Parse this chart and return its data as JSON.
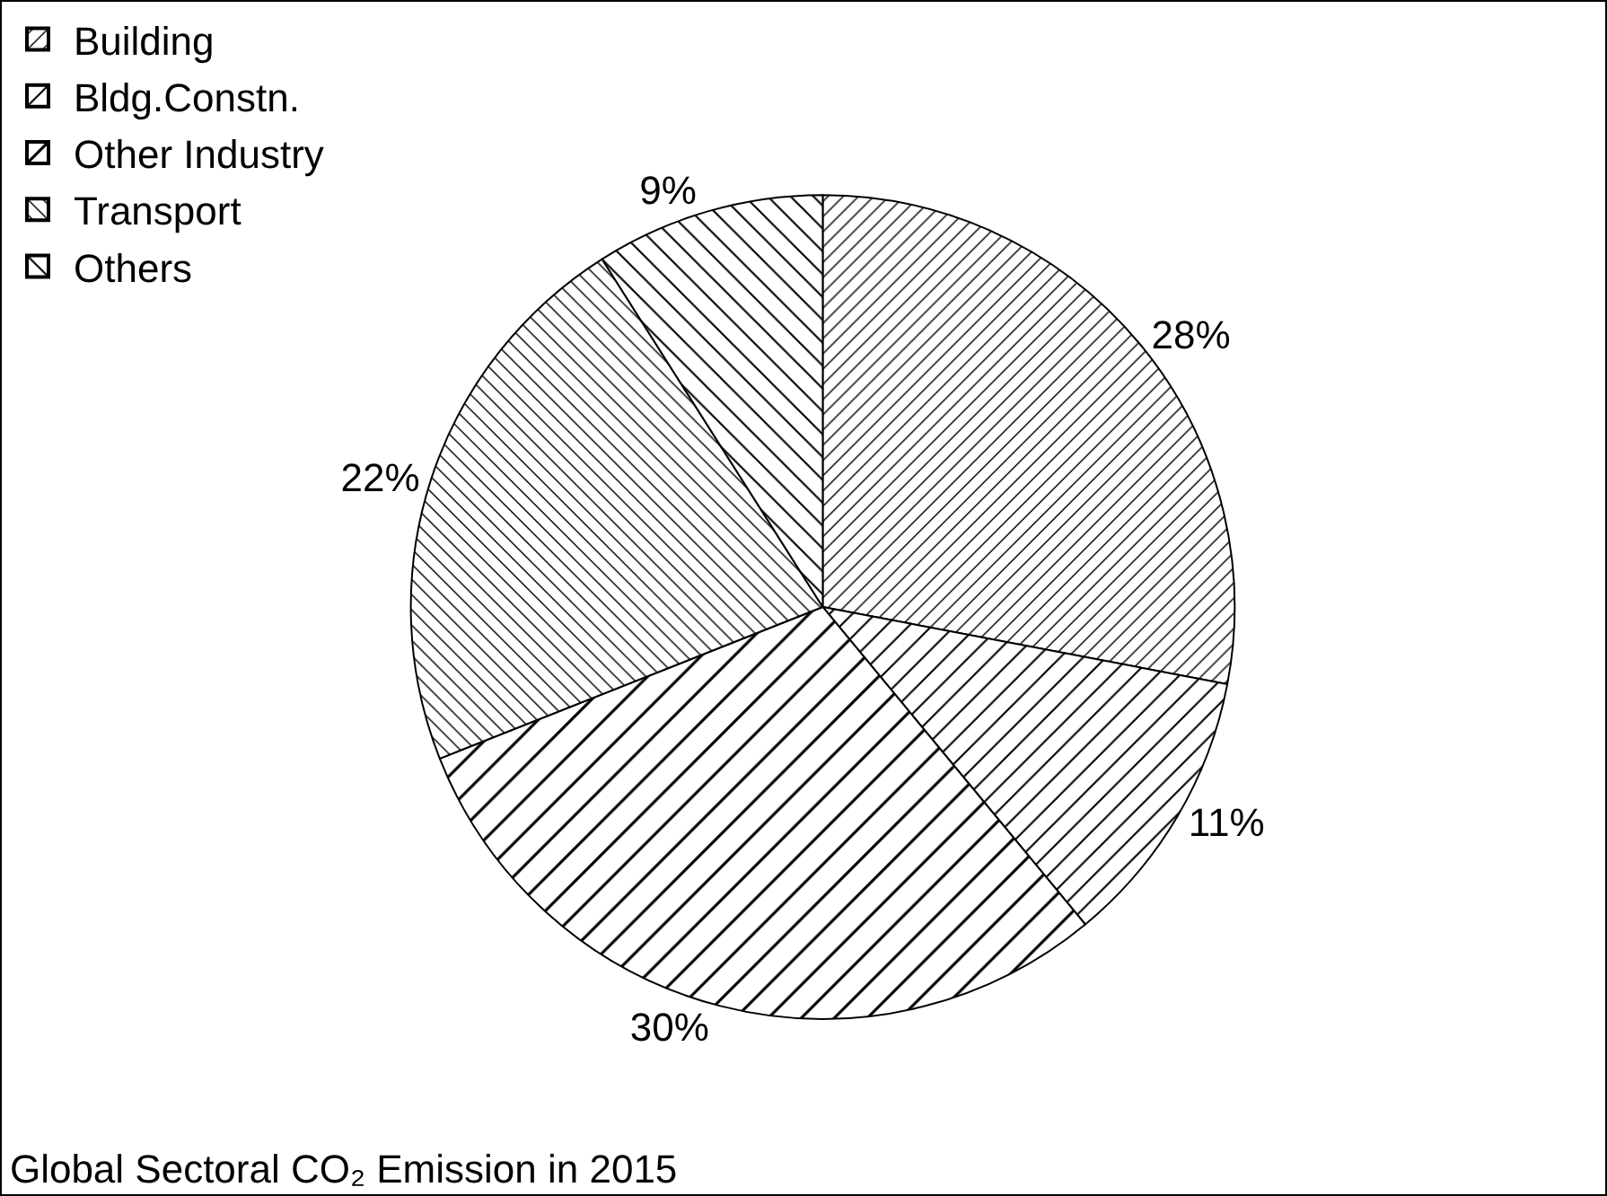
{
  "chart_data": {
    "type": "pie",
    "title": "Global Sectoral CO₂ Emission in 2015",
    "categories": [
      "Building",
      "Bldg.Constn.",
      "Other Industry",
      "Transport",
      "Others"
    ],
    "values": [
      28,
      11,
      30,
      22,
      9
    ],
    "value_labels": [
      "28%",
      "11%",
      "30%",
      "22%",
      "9%"
    ],
    "colors": [
      "#000000",
      "#000000",
      "#000000",
      "#000000",
      "#000000"
    ],
    "legend": "top left"
  }
}
